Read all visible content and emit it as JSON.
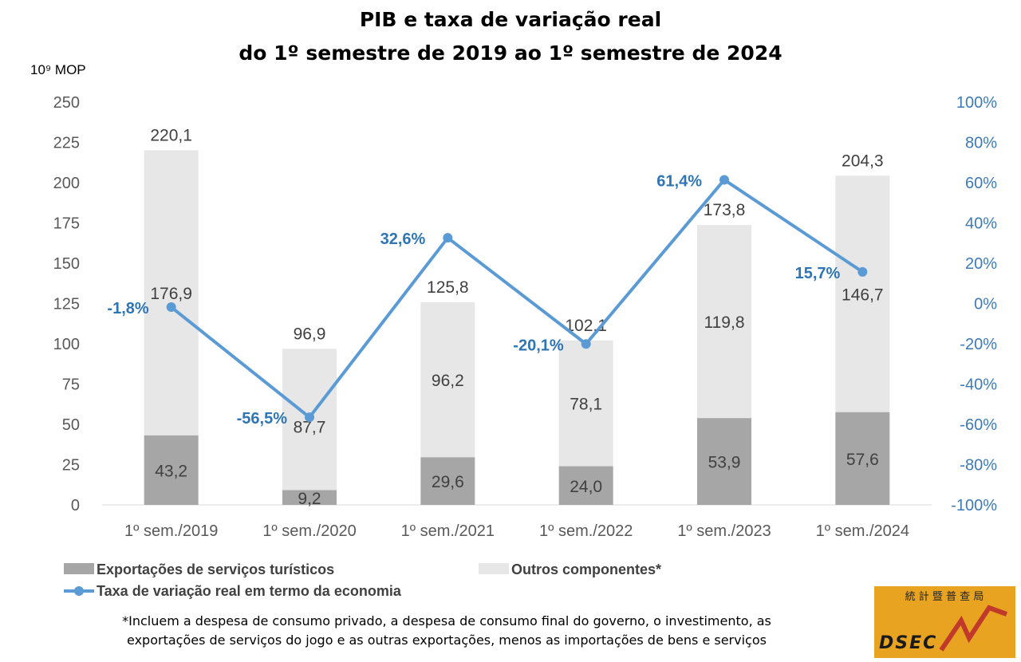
{
  "title_line1": "PIB e taxa de variação real",
  "title_line2": "do 1º semestre de 2019 ao 1º semestre de 2024",
  "unit_label": "10⁹ MOP",
  "footnote_line1": "*Incluem a despesa de consumo privado, a despesa de consumo final do governo, o investimento, as",
  "footnote_line2": "exportações de serviços do jogo e as outras exportações, menos as importações de bens e serviços",
  "logo": {
    "text": "DSEC",
    "chars": "統 計 暨 普 查 局",
    "bg_color": "#e8a321",
    "line_color": "#c0392b"
  },
  "chart_data": {
    "type": "bar",
    "stacked": true,
    "categories": [
      "1º sem./2019",
      "1º sem./2020",
      "1º sem./2021",
      "1º sem./2022",
      "1º sem./2023",
      "1º sem./2024"
    ],
    "series": [
      {
        "name": "Exportações de serviços turísticos",
        "values": [
          43.2,
          9.2,
          29.6,
          24.0,
          53.9,
          57.6
        ],
        "labels": [
          "43,2",
          "9,2",
          "29,6",
          "24,0",
          "53,9",
          "57,6"
        ],
        "color": "#a6a6a6"
      },
      {
        "name": "Outros componentes*",
        "values": [
          176.9,
          87.7,
          96.2,
          78.1,
          119.8,
          146.7
        ],
        "labels": [
          "176,9",
          "87,7",
          "96,2",
          "78,1",
          "119,8",
          "146,7"
        ],
        "color": "#e7e7e7"
      }
    ],
    "totals": [
      220.1,
      96.9,
      125.8,
      102.1,
      173.8,
      204.3
    ],
    "total_labels": [
      "220,1",
      "96,9",
      "125,8",
      "102,1",
      "173,8",
      "204,3"
    ],
    "line_series": {
      "name": "Taxa de variação real em termo da economia",
      "axis": "right",
      "values": [
        -1.8,
        -56.5,
        32.6,
        -20.1,
        61.4,
        15.7
      ],
      "labels": [
        "-1,8%",
        "-56,5%",
        "32,6%",
        "-20,1%",
        "61,4%",
        "15,7%"
      ],
      "color": "#5b9bd5"
    },
    "y_left": {
      "range": [
        0,
        250
      ],
      "ticks": [
        "0",
        "25",
        "50",
        "75",
        "100",
        "125",
        "150",
        "175",
        "200",
        "225",
        "250"
      ]
    },
    "y_right": {
      "range": [
        -100,
        100
      ],
      "ticks": [
        "-100%",
        "-80%",
        "-60%",
        "-40%",
        "-20%",
        "0%",
        "20%",
        "40%",
        "60%",
        "80%",
        "100%"
      ]
    },
    "grid": false,
    "legend_position": "bottom"
  }
}
